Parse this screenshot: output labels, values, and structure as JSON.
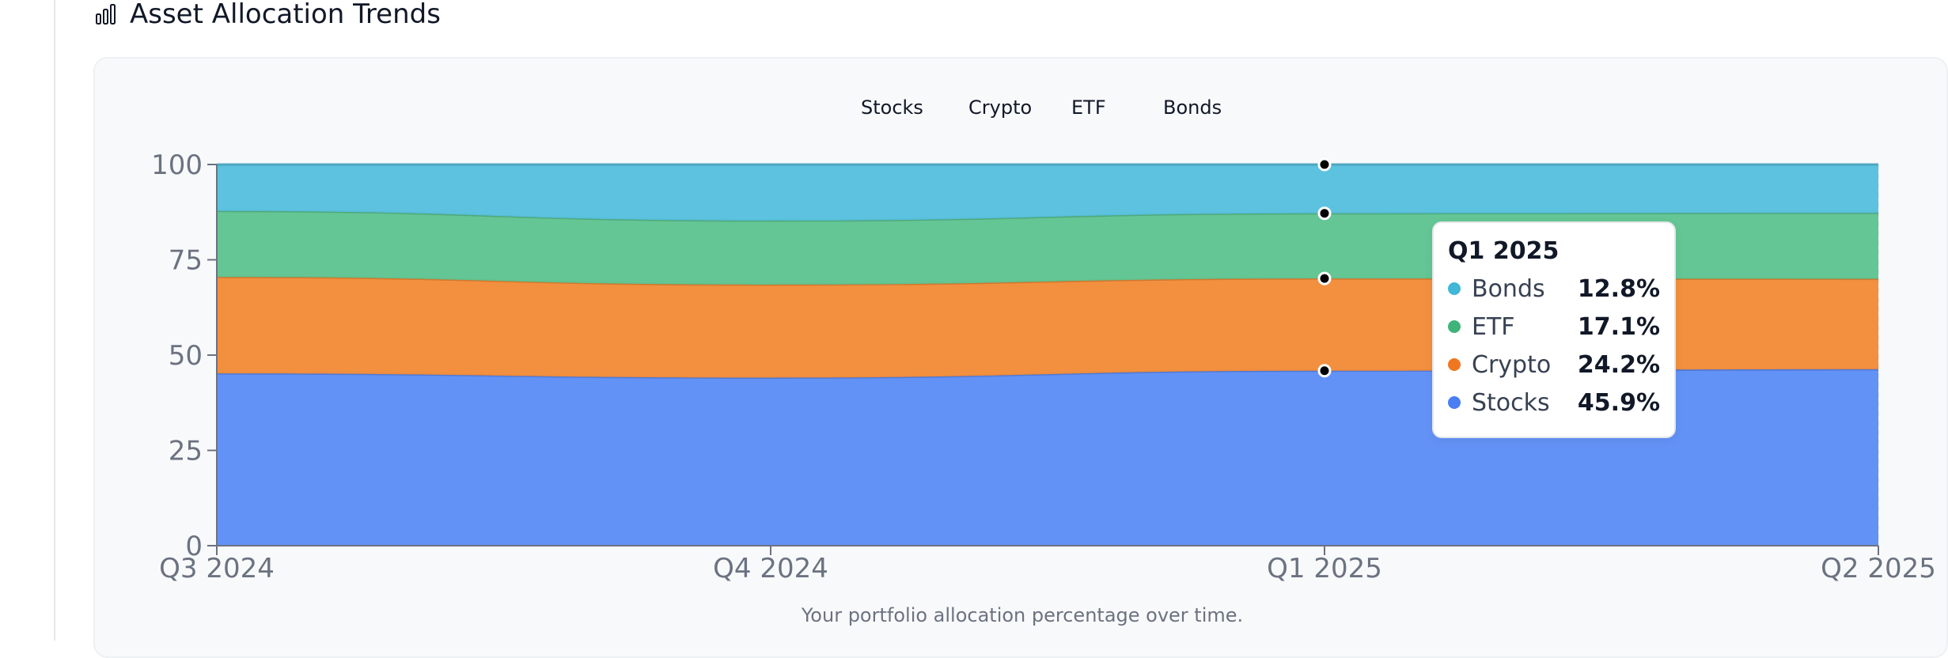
{
  "header": {
    "title": "Asset Allocation Trends",
    "icon": "bar-chart-icon"
  },
  "caption": "Your portfolio allocation percentage over time.",
  "colors": {
    "Stocks": "#5b8cf6",
    "Crypto": "#f28a35",
    "ETF": "#5cc38e",
    "Bonds": "#53bfdd"
  },
  "chart_data": {
    "type": "area",
    "stacked": true,
    "categories": [
      "Q3 2024",
      "Q4 2024",
      "Q1 2025",
      "Q2 2025"
    ],
    "series": [
      {
        "name": "Stocks",
        "values": [
          45.2,
          44.1,
          45.9,
          46.3
        ]
      },
      {
        "name": "Crypto",
        "values": [
          25.3,
          24.4,
          24.2,
          23.7
        ]
      },
      {
        "name": "ETF",
        "values": [
          17.3,
          16.8,
          17.1,
          17.3
        ]
      },
      {
        "name": "Bonds",
        "values": [
          12.2,
          14.7,
          12.8,
          12.7
        ]
      }
    ],
    "ylim": [
      0,
      100
    ],
    "yticks": [
      "0",
      "25",
      "50",
      "75",
      "100"
    ],
    "legend": [
      "Stocks",
      "Crypto",
      "ETF",
      "Bonds"
    ],
    "grid": true,
    "legend_position": "top-center"
  },
  "tooltip": {
    "title": "Q1 2025",
    "rows": [
      {
        "name": "Bonds",
        "value": "12.8%"
      },
      {
        "name": "ETF",
        "value": "17.1%"
      },
      {
        "name": "Crypto",
        "value": "24.2%"
      },
      {
        "name": "Stocks",
        "value": "45.9%"
      }
    ]
  }
}
